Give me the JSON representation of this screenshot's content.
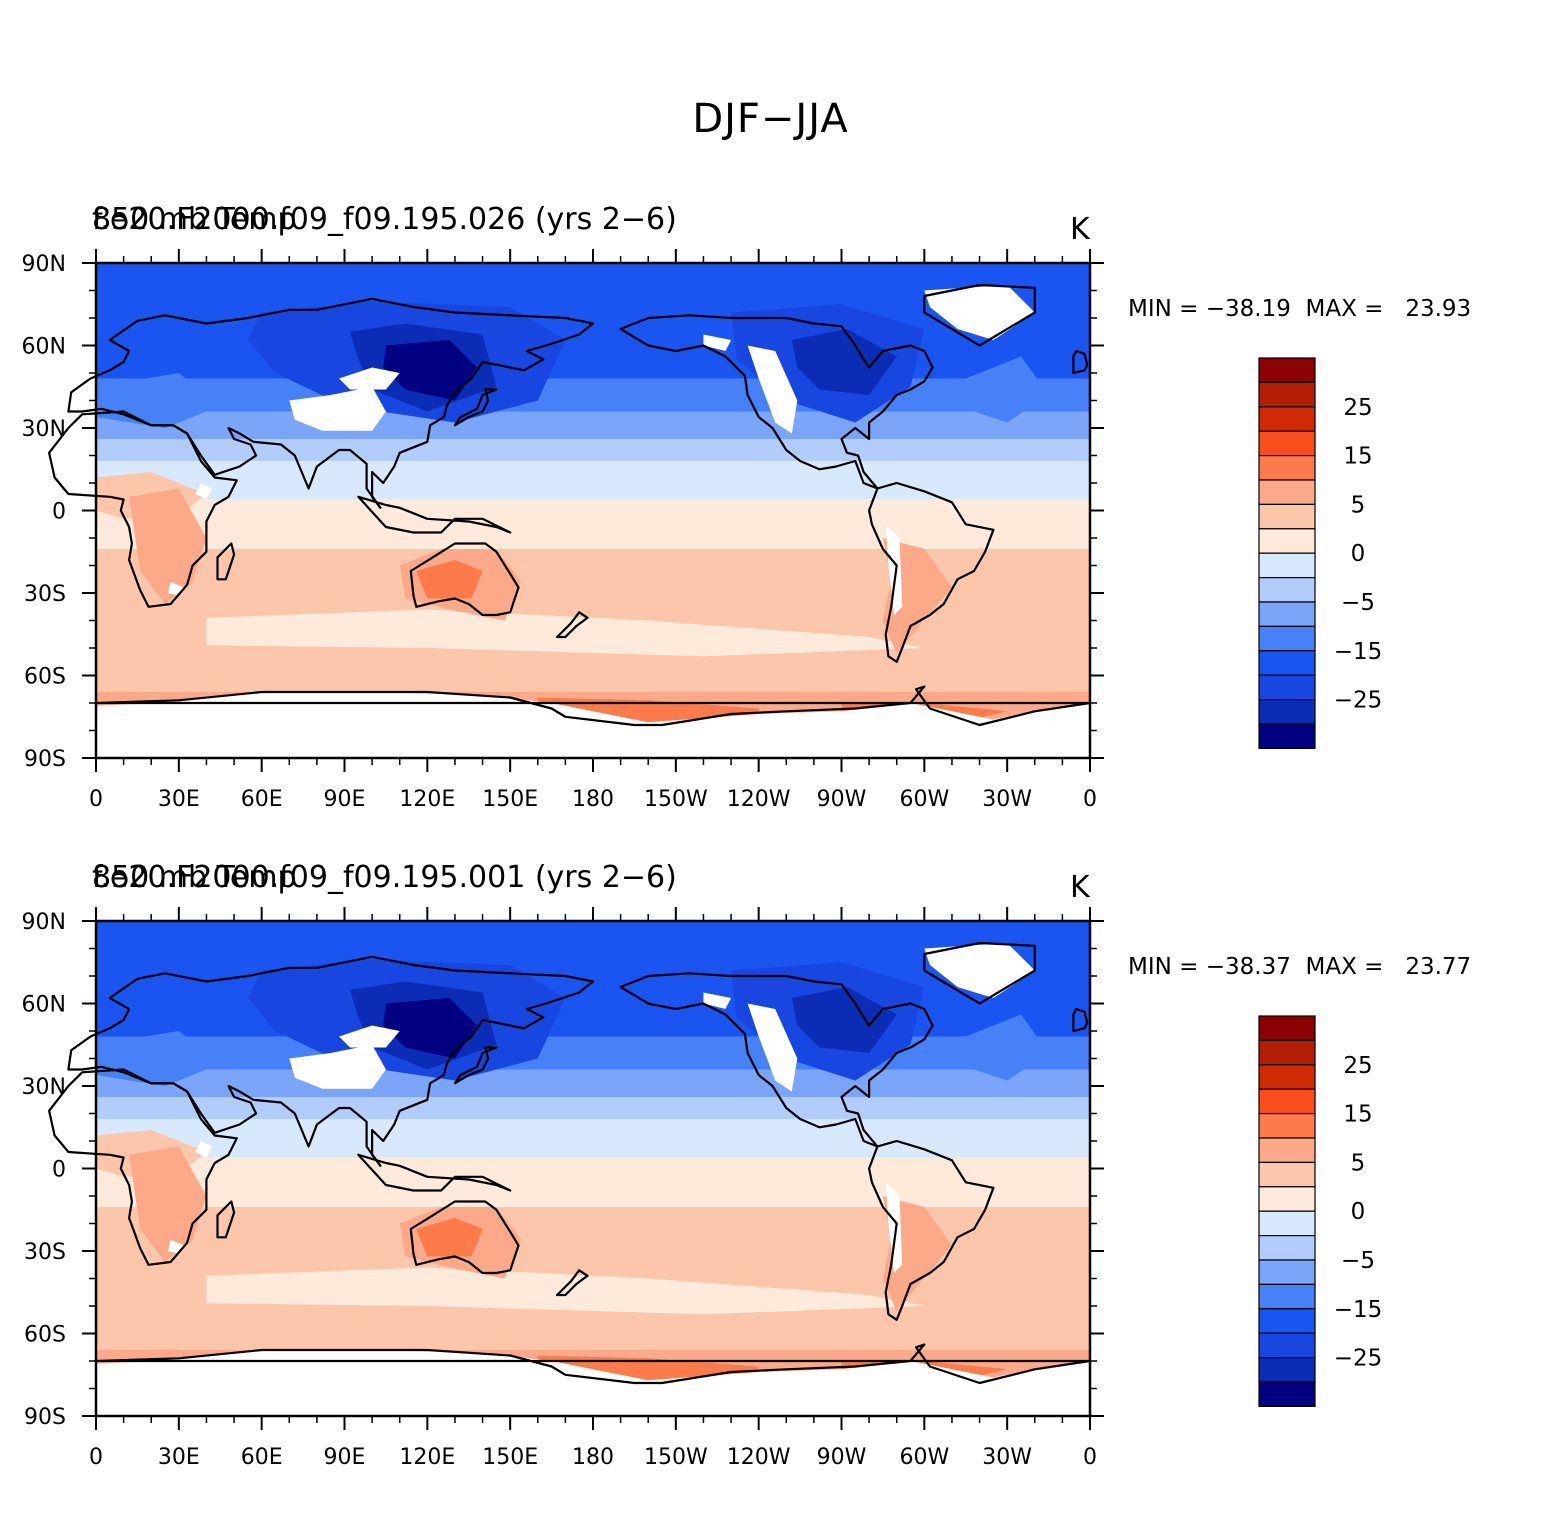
{
  "main_title": "DJF−JJA",
  "panels": [
    {
      "case_title": "f.e20.F2000.f09_f09.195.026 (yrs 2−6)",
      "var_title": "850 mb Temp",
      "units": "K",
      "min_label": "MIN = ",
      "min_value": "−38.19",
      "max_label": "MAX = ",
      "max_value": "23.93",
      "min": -38.19,
      "max": 23.93
    },
    {
      "case_title": "f.e20.F2000.f09_f09.195.001 (yrs 2−6)",
      "var_title": "850 mb Temp",
      "units": "K",
      "min_label": "MIN = ",
      "min_value": "−38.37",
      "max_label": "MAX = ",
      "max_value": "23.77",
      "min": -38.37,
      "max": 23.77
    }
  ],
  "colors": {
    "levels": [
      "#000080",
      "#0b2db5",
      "#1846e0",
      "#1a55f2",
      "#4781f7",
      "#7aa5f8",
      "#b2ccfb",
      "#d9e9fd",
      "#feeadb",
      "#fcc6ab",
      "#fca98a",
      "#fd7b4a",
      "#f94d1b",
      "#cf2a04",
      "#b41e04",
      "#8b0000"
    ],
    "land_mask": "#ffffff",
    "coastline": "#000000"
  },
  "chart_data": {
    "type": "heatmap",
    "x_ticks": [
      "0",
      "30E",
      "60E",
      "90E",
      "120E",
      "150E",
      "180",
      "150W",
      "120W",
      "90W",
      "60W",
      "30W",
      "0"
    ],
    "y_ticks": [
      "90N",
      "60N",
      "30N",
      "0",
      "30S",
      "60S",
      "90S"
    ],
    "xlim": [
      0,
      360
    ],
    "ylim": [
      -90,
      90
    ],
    "colorbar_ticks": [
      "25",
      "15",
      "5",
      "0",
      "−5",
      "−15",
      "−25"
    ]
  }
}
